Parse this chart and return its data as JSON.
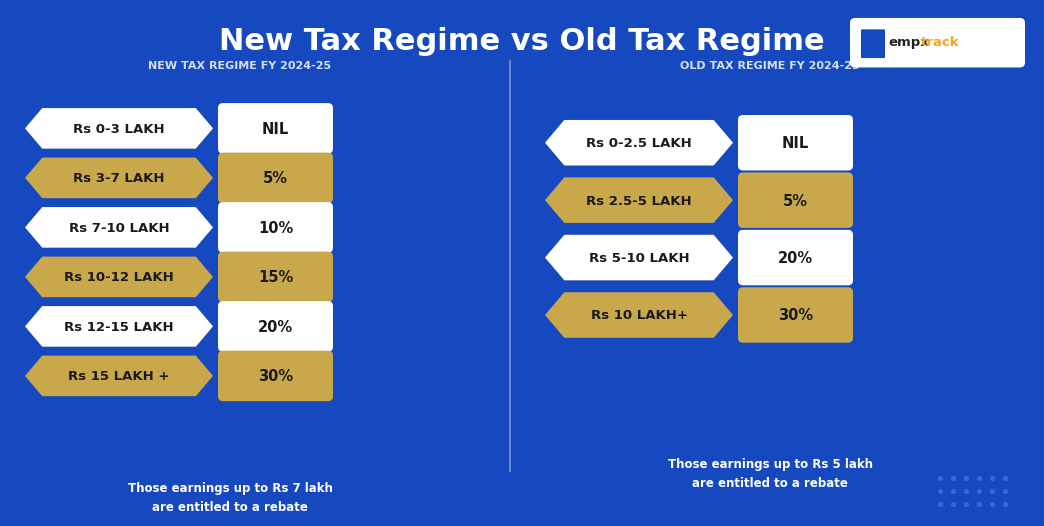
{
  "title": "New Tax Regime vs Old Tax Regime",
  "bg_color": "#1648BF",
  "title_color": "#FFFFFF",
  "divider_color": "#7B9ED9",
  "new_regime_title": "NEW TAX REGIME FY 2024-25",
  "old_regime_title": "OLD TAX REGIME FY 2024-25",
  "new_regime_rows": [
    {
      "label": "Rs 0-3 LAKH",
      "value": "NIL",
      "gold": false
    },
    {
      "label": "Rs 3-7 LAKH",
      "value": "5%",
      "gold": true
    },
    {
      "label": "Rs 7-10 LAKH",
      "value": "10%",
      "gold": false
    },
    {
      "label": "Rs 10-12 LAKH",
      "value": "15%",
      "gold": true
    },
    {
      "label": "Rs 12-15 LAKH",
      "value": "20%",
      "gold": false
    },
    {
      "label": "Rs 15 LAKH +",
      "value": "30%",
      "gold": true
    }
  ],
  "old_regime_rows": [
    {
      "label": "Rs 0-2.5 LAKH",
      "value": "NIL",
      "gold": false
    },
    {
      "label": "Rs 2.5-5 LAKH",
      "value": "5%",
      "gold": true
    },
    {
      "label": "Rs 5-10 LAKH",
      "value": "20%",
      "gold": false
    },
    {
      "label": "Rs 10 LAKH+",
      "value": "30%",
      "gold": true
    }
  ],
  "new_rebate_note": "Those earnings up to Rs 7 lakh\nare entitled to a rebate",
  "old_rebate_note": "Those earnings up to Rs 5 lakh\nare entitled to a rebate",
  "white_color": "#FFFFFF",
  "gold_color": "#C9A84C",
  "dark_text": "#1A1A1A",
  "subtitle_color": "#D4E0F5",
  "logo_bg": "#FFFFFF",
  "logo_blue": "#1648BF",
  "logo_orange": "#F5A623"
}
